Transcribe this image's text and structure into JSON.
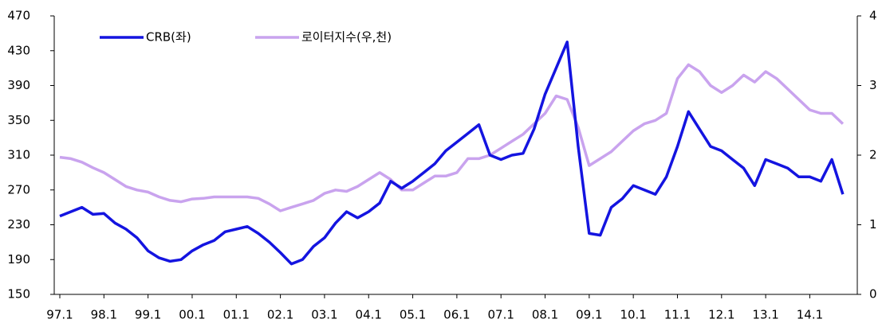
{
  "chart_data": {
    "type": "line",
    "categories": [
      "97.1",
      null,
      null,
      null,
      "98.1",
      null,
      null,
      null,
      "99.1",
      null,
      null,
      null,
      "00.1",
      null,
      null,
      null,
      "01.1",
      null,
      null,
      null,
      "02.1",
      null,
      null,
      null,
      "03.1",
      null,
      null,
      null,
      "04.1",
      null,
      null,
      null,
      "05.1",
      null,
      null,
      null,
      "06.1",
      null,
      null,
      null,
      "07.1",
      null,
      null,
      null,
      "08.1",
      null,
      null,
      null,
      "09.1",
      null,
      null,
      null,
      "10.1",
      null,
      null,
      null,
      "11.1",
      null,
      null,
      null,
      "12.1",
      null,
      null,
      null,
      "13.1",
      null,
      null,
      null,
      "14.1",
      null,
      null,
      null
    ],
    "series": [
      {
        "name": "CRB(좌)",
        "color": "#1414e0",
        "values": [
          240,
          245,
          250,
          242,
          243,
          232,
          225,
          215,
          200,
          192,
          188,
          190,
          200,
          207,
          212,
          222,
          225,
          228,
          220,
          210,
          198,
          185,
          190,
          205,
          215,
          232,
          245,
          238,
          245,
          255,
          280,
          272,
          280,
          290,
          300,
          315,
          325,
          335,
          345,
          310,
          305,
          310,
          312,
          340,
          380,
          410,
          440,
          320,
          220,
          218,
          250,
          260,
          275,
          270,
          265,
          285,
          320,
          360,
          340,
          320,
          315,
          305,
          295,
          275,
          305,
          300,
          295,
          285,
          285,
          280,
          305,
          265
        ]
      },
      {
        "name": "로이터지수(우,천)",
        "color": "#c9a3ee",
        "axis": "y2",
        "values": [
          1.97,
          1.95,
          1.9,
          1.82,
          1.75,
          1.65,
          1.55,
          1.5,
          1.47,
          1.4,
          1.35,
          1.33,
          1.37,
          1.38,
          1.4,
          1.4,
          1.4,
          1.4,
          1.38,
          1.3,
          1.2,
          1.25,
          1.3,
          1.35,
          1.45,
          1.5,
          1.48,
          1.55,
          1.65,
          1.75,
          1.65,
          1.5,
          1.5,
          1.6,
          1.7,
          1.7,
          1.75,
          1.95,
          1.95,
          2.0,
          2.1,
          2.2,
          2.3,
          2.45,
          2.6,
          2.85,
          2.8,
          2.4,
          1.85,
          1.95,
          2.05,
          2.2,
          2.35,
          2.45,
          2.5,
          2.6,
          3.1,
          3.3,
          3.2,
          3.0,
          2.9,
          3.0,
          3.15,
          3.05,
          3.2,
          3.1,
          2.95,
          2.8,
          2.65,
          2.6,
          2.6,
          2.45
        ]
      }
    ],
    "ylim": [
      150,
      470
    ],
    "yticks": [
      150,
      190,
      230,
      270,
      310,
      350,
      390,
      430,
      470
    ],
    "y2lim": [
      0,
      4
    ],
    "y2ticks": [
      0,
      1,
      2,
      3,
      4
    ],
    "grid": false
  }
}
